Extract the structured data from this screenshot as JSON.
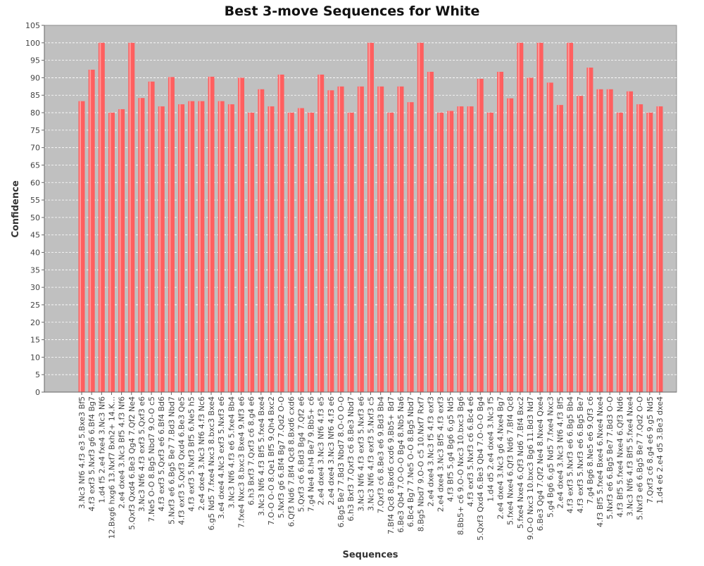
{
  "chart_data": {
    "type": "bar",
    "title": "Best 3-move Sequences for White",
    "xlabel": "Sequences",
    "ylabel": "Confidence",
    "ylim": [
      0,
      105
    ],
    "yticks": [
      0,
      5,
      10,
      15,
      20,
      25,
      30,
      35,
      40,
      45,
      50,
      55,
      60,
      65,
      70,
      75,
      80,
      85,
      90,
      95,
      100,
      105
    ],
    "grid": true,
    "bar_color": "#ff5f5f",
    "plot_background": "#c0c0c0",
    "categories": [
      "3.Nc3 Nf6 4.f3 e3 5.Bxe3 Bf5",
      "4.f3 exf3 5.Nxf3 g6 6.Bf4 Bg7",
      "1.d4 f5 2.e4 fxe4 3.Nc3 Nf6",
      "12.Bxg6 hxg6 13.Nxf7 Bxh2+ 14.K...",
      "2.e4 dxe4 3.Nc3 Bf5 4.f3 Nf6",
      "5.Qxf3 Qxd4 6.Be3 Qg4 7.Qf2 Ne4",
      "3.Nc3 Nf6 4.f3 exf3 5.Qxf3 e6",
      "7.Ne5 O-O 8.Bg5 Nbd7 9.O-O c5",
      "4.f3 exf3 5.Qxf3 e6 6.Bf4 Bd6",
      "5.Nxf3 e6 6.Bg5 Be7 7.Bd3 Nbd7",
      "4.f3 exf3 5.Qxf3 Qxd4 6.Be3 Qe5",
      "4.f3 exf3 5.Nxf3 Bf5 6.Ne5 h5",
      "2.e4 dxe4 3.Nc3 Nf6 4.f3 Nc6",
      "6.g5 Nd5 7.fxe4 Nxc3 8.bxc3 Bxe4",
      "3.e4 dxe4 4.Nc3 exf3 5.Nxf3 e6",
      "3.Nc3 Nf6 4.f3 e6 5.fxe4 Bb4",
      "7.fxe4 Nxc3 8.bxc3 Bxe4 9.Nf3 e6",
      "6.h3 Bxf3 7.Qxf3 c6 8.g4 e6",
      "3.Nc3 Nf6 4.f3 Bf5 5.fxe4 Bxe4",
      "7.O-O O-O 8.Qe1 Bf5 9.Qh4 Bxc2",
      "5.Nxf3 g6 6.Bf4 Bg7 7.Qd2 O-O",
      "6.Qf3 Nd6 7.Bf4 Qc8 8.Bxd6 cxd6",
      "5.Qxf3 c6 6.Bd3 Bg4 7.Qf2 e6",
      "7.g4 Ne4 8.h4 Be7 9.Bb5+ c6",
      "2.e4 dxe4 3.Nc3 Nf6 4.f3 e5",
      "2.e4 dxe4 3.Nc3 Nf6 4.f3 e6",
      "6.Bg5 Be7 7.Bd3 Nbd7 8.O-O O-O",
      "6.h3 Bxf3 7.Qxf3 c6 8.Be3 Nbd7",
      "3.Nc3 Nf6 4.f3 exf3 5.Nxf3 e6",
      "3.Nc3 Nf6 4.f3 exf3 5.Nxf3 c5",
      "7.Qxf3 c6 8.Be3 e6 9.Bd3 Bb4",
      "7.Bf4 Qc8 8.Bxd6 cxd6 9.Bb5+ Bd7",
      "6.Be3 Qb4 7.O-O-O Bg4 8.Nb5 Na6",
      "6.Bc4 Bg7 7.Ne5 O-O 8.Bg5 Nbd7",
      "8.Bg5 Nbd7 9.O-O c5 10.Nxf7 Rxf7",
      "2.e4 dxe4 3.Nc3 f5 4.f3 exf3",
      "2.e4 dxe4 3.Nc3 Bf5 4.f3 exf3",
      "4.f3 Bf5 5.g4 Bg6 6.g5 Nd5",
      "8.Bb5+ c6 9.O-O Nxc3 10.bxc3 Bg6",
      "4.f3 exf3 5.Nxf3 c6 6.Bc4 e6",
      "5.Qxf3 Qxd4 6.Be3 Qb4 7.O-O-O Bg4",
      "1.d4 d5 2.e4 dxe4 3.Nc3 f5",
      "2.e4 dxe4 3.Nc3 g6 4.Nxe4 Bg7",
      "5.fxe4 Nxe4 6.Qf3 Nd6 7.Bf4 Qc8",
      "5.fxe4 Nxe4 6.Qf3 Nd6 7.Bf4 Bxc2",
      "9.O-O Nxc3 10.bxc3 Bg6 11.Bd3 Nd7",
      "6.Be3 Qg4 7.Qf2 Ne4 8.Nxe4 Qxe4",
      "5.g4 Bg6 6.g5 Nd5 7.fxe4 Nxc3",
      "2.e4 dxe4 3.Nc3 Nf6 4.f3 Bf5",
      "4.f3 exf3 5.Nxf3 e6 6.Bg5 Bb4",
      "4.f3 exf3 5.Nxf3 e6 6.Bg5 Be7",
      "7.g4 Bg6 8.Ne5 e6 9.Qf3 c6",
      "4.f3 Bf5 5.fxe4 Bxe4 6.Nxe4 Nxe4",
      "5.Nxf3 e6 6.Bg5 Be7 7.Bd3 O-O",
      "4.f3 Bf5 5.fxe4 Nxe4 6.Qf3 Nd6",
      "3.Nc3 Nf6 4.f3 Bf5 5.fxe4 Nxe4",
      "5.Nxf3 e6 6.Bg5 Be7 7.Qd2 O-O",
      "7.Qxf3 c6 8.g4 e6 9.g5 Nd5",
      "1.d4 e6 2.e4 d5 3.Be3 dxe4"
    ],
    "values": [
      83.3,
      92.3,
      100,
      80,
      81,
      100,
      84.2,
      88.9,
      81.8,
      90.2,
      82.4,
      83.3,
      83.3,
      90.3,
      83.3,
      82.4,
      90,
      80,
      86.7,
      81.8,
      90.9,
      80,
      81.3,
      80,
      90.9,
      86.4,
      87.5,
      80,
      87.5,
      100,
      87.5,
      80,
      87.5,
      83,
      100,
      91.7,
      80,
      80.5,
      81.8,
      81.8,
      89.7,
      80,
      91.7,
      84.1,
      100,
      90,
      100,
      88.6,
      82.2,
      100,
      84.8,
      92.9,
      86.7,
      86.7,
      80,
      86.1,
      82.4,
      80,
      81.8
    ]
  }
}
